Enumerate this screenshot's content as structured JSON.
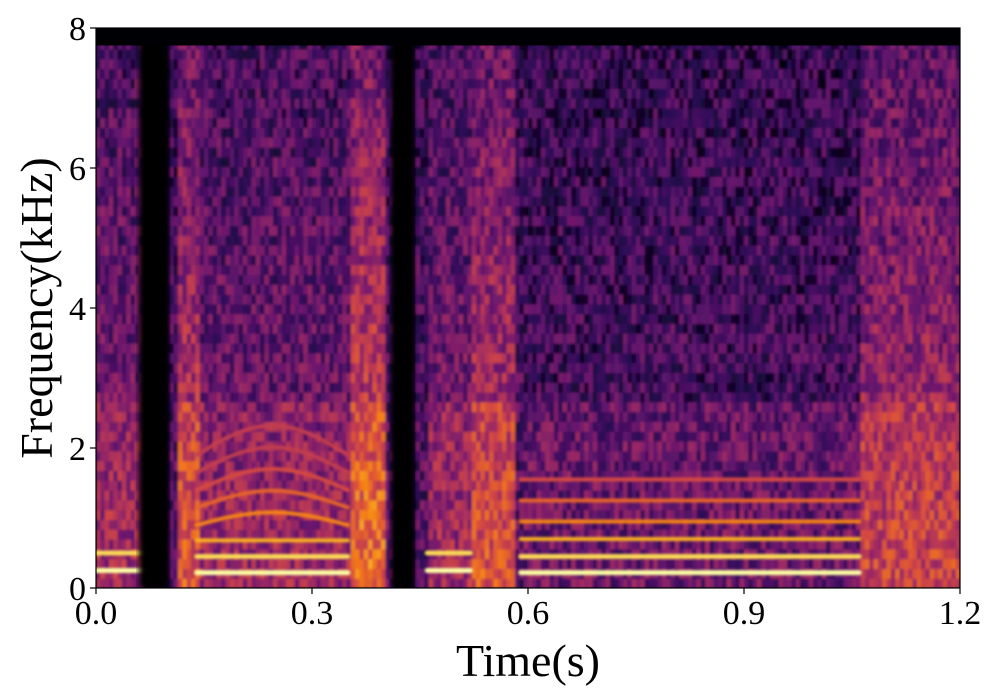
{
  "chart_data": {
    "type": "heatmap",
    "subtype": "spectrogram",
    "colormap": "inferno",
    "xlabel": "Time(s)",
    "ylabel": "Frequency(kHz)",
    "xlim": [
      0.0,
      1.2
    ],
    "ylim": [
      0,
      8
    ],
    "xticks": [
      0.0,
      0.3,
      0.6,
      0.9,
      1.2
    ],
    "xtick_labels": [
      "0.0",
      "0.3",
      "0.6",
      "0.9",
      "1.2"
    ],
    "yticks": [
      0,
      2,
      4,
      6,
      8
    ],
    "ytick_labels": [
      "0",
      "2",
      "4",
      "6",
      "8"
    ],
    "grid": false,
    "silence_intervals_s": [
      [
        0.06,
        0.1
      ],
      [
        0.41,
        0.44
      ]
    ],
    "segments": [
      {
        "t_start": 0.0,
        "t_end": 0.08,
        "harmonics_khz": [
          0.25,
          0.5
        ],
        "high_freq_energy": 0.5
      },
      {
        "t_start": 0.11,
        "t_end": 0.14,
        "harmonics_khz": [],
        "high_freq_energy": 0.85
      },
      {
        "t_start": 0.14,
        "t_end": 0.35,
        "harmonics_khz": [
          0.22,
          0.45,
          0.68,
          0.9,
          1.15,
          1.4,
          1.65,
          1.9
        ],
        "high_freq_energy": 0.45
      },
      {
        "t_start": 0.34,
        "t_end": 0.4,
        "harmonics_khz": [],
        "high_freq_energy": 0.95
      },
      {
        "t_start": 0.46,
        "t_end": 0.52,
        "harmonics_khz": [
          0.25,
          0.5
        ],
        "high_freq_energy": 0.5
      },
      {
        "t_start": 0.52,
        "t_end": 0.58,
        "harmonics_khz": [],
        "high_freq_energy": 0.8
      },
      {
        "t_start": 0.59,
        "t_end": 1.06,
        "harmonics_khz": [
          0.22,
          0.45,
          0.7,
          0.95,
          1.25,
          1.55
        ],
        "high_freq_energy": 0.25
      },
      {
        "t_start": 1.06,
        "t_end": 1.2,
        "harmonics_khz": [],
        "high_freq_energy": 0.7
      }
    ]
  }
}
